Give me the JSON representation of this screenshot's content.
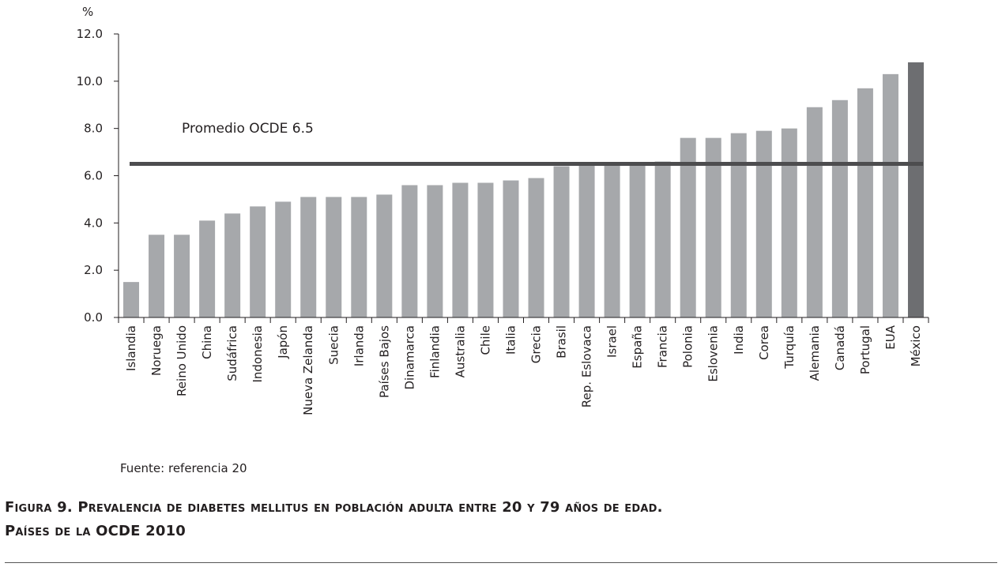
{
  "chart_data": {
    "type": "bar",
    "unit_label": "%",
    "categories": [
      "Islandia",
      "Noruega",
      "Reino Unido",
      "China",
      "Sudáfrica",
      "Indonesia",
      "Japón",
      "Nueva Zelanda",
      "Suecia",
      "Irlanda",
      "Países Bajos",
      "Dinamarca",
      "Finlandia",
      "Australia",
      "Chile",
      "Italia",
      "Grecia",
      "Brasil",
      "Rep. Eslovaca",
      "Israel",
      "España",
      "Francia",
      "Polonia",
      "Eslovenia",
      "India",
      "Corea",
      "Turquía",
      "Alemania",
      "Canadá",
      "Portugal",
      "EUA",
      "México"
    ],
    "values": [
      1.5,
      3.5,
      3.5,
      4.1,
      4.4,
      4.7,
      4.9,
      5.1,
      5.1,
      5.1,
      5.2,
      5.6,
      5.6,
      5.7,
      5.7,
      5.8,
      5.9,
      6.4,
      6.5,
      6.5,
      6.5,
      6.6,
      7.6,
      7.6,
      7.8,
      7.9,
      8.0,
      8.9,
      9.2,
      9.7,
      10.3,
      10.8
    ],
    "highlight": "México",
    "ylim": [
      0,
      12
    ],
    "yticks": [
      "0.0",
      "2.0",
      "4.0",
      "6.0",
      "8.0",
      "10.0",
      "12.0"
    ],
    "average": {
      "label": "Promedio OCDE 6.5",
      "value": 6.5
    },
    "colors": {
      "bar": "#a6a8ab",
      "highlight": "#6d6e71",
      "average_line": "#4d4d4f",
      "axis": "#231f20"
    }
  },
  "source_text": "Fuente: referencia 20",
  "caption": {
    "line1": "Figura 9. Prevalencia de diabetes mellitus en población adulta entre 20 y 79 años de edad.",
    "line2": "Países de la OCDE 2010"
  }
}
